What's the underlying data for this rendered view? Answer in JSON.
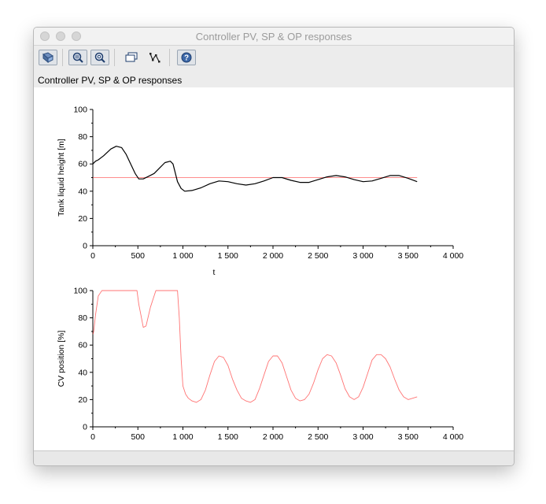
{
  "window": {
    "title": "Controller PV, SP & OP responses"
  },
  "toolbar": {
    "buttons": [
      {
        "icon": "rotate-icon"
      },
      {
        "icon": "zoom-in-icon"
      },
      {
        "icon": "zoom-out-icon"
      },
      {
        "icon": "datatip-icon"
      },
      {
        "icon": "edit-curve-icon"
      },
      {
        "icon": "help-icon"
      }
    ]
  },
  "figure_label": "Controller PV, SP & OP responses",
  "colors": {
    "pv": "#000000",
    "sp": "#ff0000",
    "op": "#ff0000",
    "axis": "#000000"
  },
  "chart_data": [
    {
      "type": "line",
      "xlabel": "t",
      "ylabel": "Tank liquid height [m]",
      "xlim": [
        0,
        4000
      ],
      "ylim": [
        0,
        100
      ],
      "xticks": [
        0,
        500,
        1000,
        1500,
        2000,
        2500,
        3000,
        3500,
        4000
      ],
      "xtick_labels": [
        "0",
        "500",
        "1 000",
        "1 500",
        "2 000",
        "2 500",
        "3 000",
        "3 500",
        "4 000"
      ],
      "yticks": [
        0,
        20,
        40,
        60,
        80,
        100
      ],
      "ytick_labels": [
        "0",
        "20",
        "40",
        "60",
        "80",
        "100"
      ],
      "series": [
        {
          "color": "#000000",
          "x": [
            0,
            30,
            60,
            120,
            200,
            260,
            320,
            370,
            420,
            470,
            510,
            560,
            620,
            680,
            740,
            800,
            860,
            890,
            940,
            980,
            1020,
            1100,
            1200,
            1300,
            1400,
            1500,
            1600,
            1700,
            1800,
            1900,
            2000,
            2100,
            2200,
            2300,
            2400,
            2500,
            2600,
            2700,
            2800,
            2900,
            3000,
            3100,
            3200,
            3300,
            3400,
            3500,
            3600
          ],
          "y": [
            60,
            62,
            63,
            66,
            71,
            73,
            72,
            67,
            60,
            53,
            49,
            49,
            51,
            53,
            57,
            61,
            62,
            60,
            47,
            42,
            40,
            40.5,
            42.5,
            45.5,
            47.5,
            47,
            45.5,
            44.5,
            45.5,
            47.5,
            50,
            50,
            48,
            46.5,
            46.5,
            48.5,
            50.5,
            51.5,
            50.5,
            48.5,
            47,
            47.5,
            49.5,
            51.5,
            51.5,
            49.5,
            47
          ]
        },
        {
          "color": "#ff0000",
          "x": [
            0,
            3600
          ],
          "y": [
            50,
            50
          ]
        }
      ]
    },
    {
      "type": "line",
      "xlabel": "",
      "ylabel": "CV position [%]",
      "xlim": [
        0,
        4000
      ],
      "ylim": [
        0,
        100
      ],
      "xticks": [
        0,
        500,
        1000,
        1500,
        2000,
        2500,
        3000,
        3500,
        4000
      ],
      "xtick_labels": [
        "0",
        "500",
        "1 000",
        "1 500",
        "2 000",
        "2 500",
        "3 000",
        "3 500",
        "4 000"
      ],
      "yticks": [
        0,
        20,
        40,
        60,
        80,
        100
      ],
      "ytick_labels": [
        "0",
        "20",
        "40",
        "60",
        "80",
        "100"
      ],
      "series": [
        {
          "color": "#ff0000",
          "x": [
            0,
            10,
            30,
            60,
            100,
            490,
            510,
            540,
            560,
            590,
            640,
            700,
            940,
            960,
            980,
            1000,
            1030,
            1060,
            1100,
            1150,
            1200,
            1250,
            1300,
            1350,
            1400,
            1450,
            1500,
            1550,
            1600,
            1650,
            1700,
            1750,
            1800,
            1850,
            1900,
            1950,
            2000,
            2050,
            2100,
            2150,
            2200,
            2250,
            2300,
            2350,
            2400,
            2450,
            2500,
            2550,
            2600,
            2650,
            2700,
            2750,
            2800,
            2850,
            2900,
            2950,
            3000,
            3050,
            3100,
            3150,
            3200,
            3250,
            3300,
            3350,
            3400,
            3450,
            3500,
            3550,
            3600
          ],
          "y": [
            68,
            70,
            82,
            96,
            100,
            100,
            90,
            80,
            73,
            74,
            88,
            100,
            100,
            80,
            50,
            30,
            24,
            21,
            19,
            18,
            20,
            27,
            38,
            48,
            52,
            51,
            45,
            35,
            27,
            21,
            19,
            18,
            20,
            28,
            38,
            48,
            52,
            52,
            47,
            37,
            27,
            21,
            19,
            20,
            24,
            32,
            42,
            50,
            53,
            52,
            47,
            38,
            28,
            22,
            20,
            22,
            29,
            39,
            49,
            53,
            53,
            50,
            44,
            35,
            27,
            22,
            20,
            21,
            22
          ]
        }
      ]
    }
  ]
}
